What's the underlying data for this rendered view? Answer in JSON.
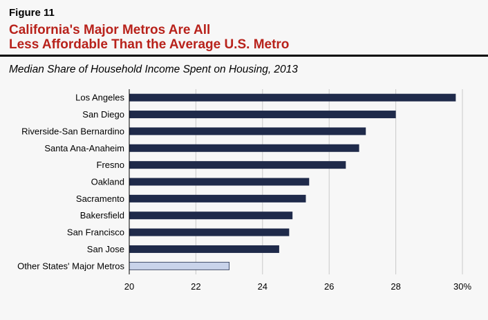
{
  "figure_label": "Figure 11",
  "title_line1": "California's Major Metros Are All",
  "title_line2": "Less Affordable Than the Average U.S. Metro",
  "colors": {
    "title": "#b8221b",
    "bar": "#1f2a4a",
    "bar_highlight": "#c9d3ea"
  },
  "chart_data": {
    "type": "bar",
    "orientation": "horizontal",
    "title": "Median Share of Household Income Spent on Housing, 2013",
    "categories": [
      "Los Angeles",
      "San Diego",
      "Riverside-San Bernardino",
      "Santa Ana-Anaheim",
      "Fresno",
      "Oakland",
      "Sacramento",
      "Bakersfield",
      "San Francisco",
      "San Jose",
      "Other States' Major Metros"
    ],
    "values": [
      29.8,
      28.0,
      27.1,
      26.9,
      26.5,
      25.4,
      25.3,
      24.9,
      24.8,
      24.5,
      23.0
    ],
    "highlight_category": "Other States' Major Metros",
    "xlim": [
      20,
      30
    ],
    "xticks": [
      "20",
      "22",
      "24",
      "26",
      "28",
      "30%"
    ],
    "xlabel": "",
    "ylabel": "",
    "grid": "vertical"
  }
}
